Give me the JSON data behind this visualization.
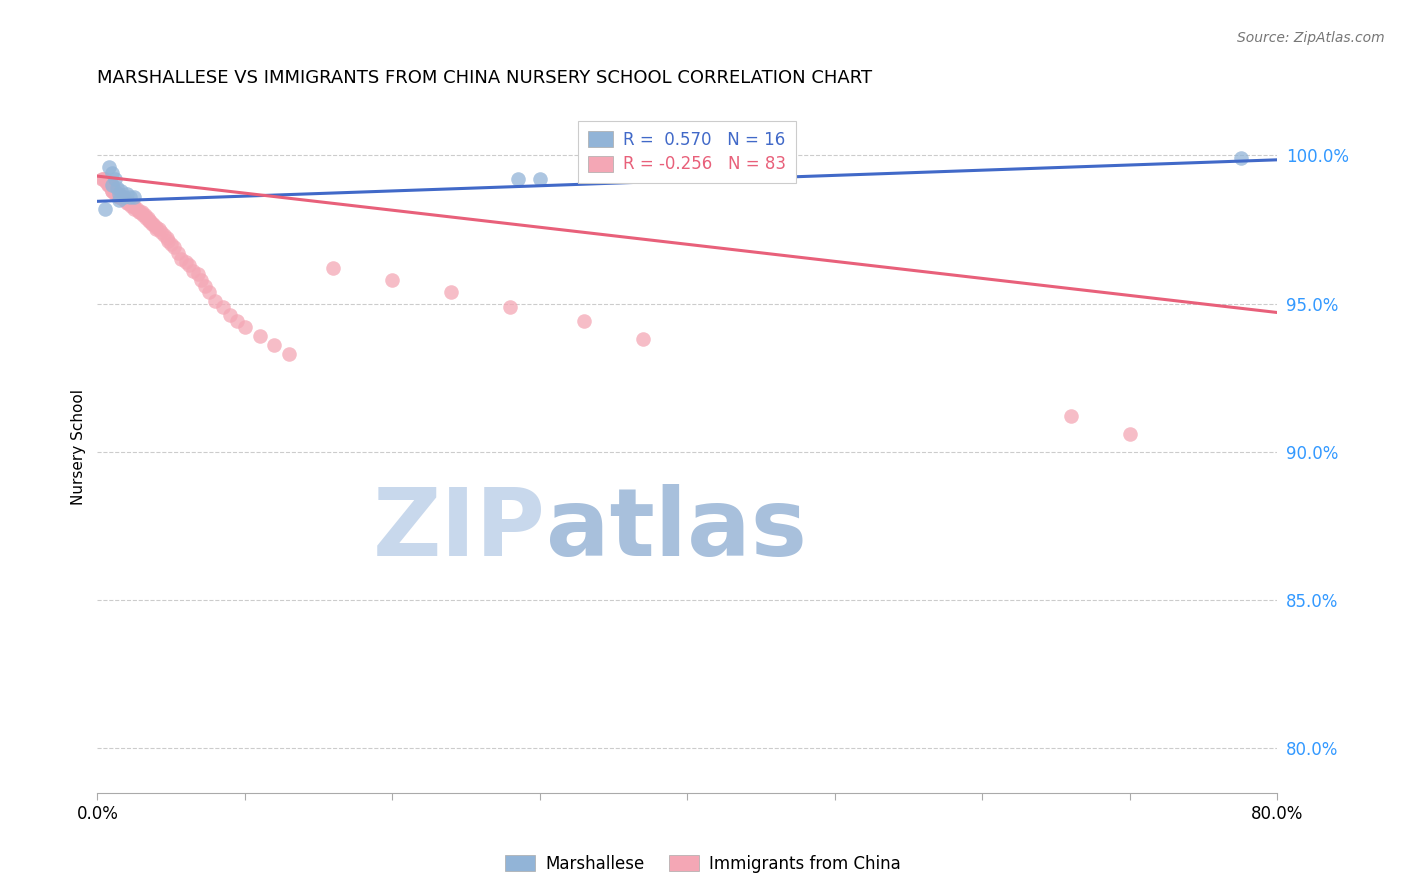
{
  "title": "MARSHALLESE VS IMMIGRANTS FROM CHINA NURSERY SCHOOL CORRELATION CHART",
  "source": "Source: ZipAtlas.com",
  "ylabel": "Nursery School",
  "ytick_labels": [
    "100.0%",
    "95.0%",
    "90.0%",
    "85.0%",
    "80.0%"
  ],
  "ytick_values": [
    1.0,
    0.95,
    0.9,
    0.85,
    0.8
  ],
  "xlim": [
    0.0,
    0.8
  ],
  "ylim": [
    0.785,
    1.018
  ],
  "legend_blue_r": "0.570",
  "legend_blue_n": "16",
  "legend_pink_r": "-0.256",
  "legend_pink_n": "83",
  "blue_color": "#92B4D7",
  "pink_color": "#F4A7B5",
  "blue_line_color": "#4169C8",
  "pink_line_color": "#E8607A",
  "grid_color": "#CCCCCC",
  "watermark_zip_color": "#C5D5E8",
  "watermark_atlas_color": "#A8C4E0",
  "blue_trendline_x": [
    0.0,
    0.8
  ],
  "blue_trendline_y": [
    0.9845,
    0.9985
  ],
  "pink_trendline_x": [
    0.0,
    0.8
  ],
  "pink_trendline_y": [
    0.993,
    0.947
  ],
  "blue_points_x": [
    0.005,
    0.008,
    0.01,
    0.01,
    0.012,
    0.013,
    0.015,
    0.015,
    0.016,
    0.018,
    0.02,
    0.022,
    0.025,
    0.285,
    0.3,
    0.775
  ],
  "blue_points_y": [
    0.982,
    0.996,
    0.994,
    0.99,
    0.992,
    0.989,
    0.987,
    0.985,
    0.988,
    0.986,
    0.987,
    0.986,
    0.986,
    0.992,
    0.992,
    0.999
  ],
  "pink_points_x": [
    0.003,
    0.004,
    0.005,
    0.006,
    0.007,
    0.007,
    0.008,
    0.008,
    0.009,
    0.009,
    0.01,
    0.01,
    0.01,
    0.011,
    0.011,
    0.012,
    0.012,
    0.013,
    0.013,
    0.014,
    0.014,
    0.015,
    0.015,
    0.016,
    0.016,
    0.017,
    0.018,
    0.018,
    0.019,
    0.02,
    0.02,
    0.021,
    0.022,
    0.023,
    0.024,
    0.025,
    0.025,
    0.027,
    0.028,
    0.029,
    0.03,
    0.031,
    0.032,
    0.033,
    0.034,
    0.035,
    0.036,
    0.037,
    0.038,
    0.04,
    0.04,
    0.042,
    0.043,
    0.045,
    0.047,
    0.048,
    0.05,
    0.052,
    0.055,
    0.057,
    0.06,
    0.062,
    0.065,
    0.068,
    0.07,
    0.073,
    0.076,
    0.08,
    0.085,
    0.09,
    0.095,
    0.1,
    0.11,
    0.12,
    0.13,
    0.16,
    0.2,
    0.24,
    0.28,
    0.33,
    0.37,
    0.66,
    0.7
  ],
  "pink_points_y": [
    0.992,
    0.992,
    0.992,
    0.991,
    0.991,
    0.99,
    0.99,
    0.99,
    0.99,
    0.99,
    0.99,
    0.988,
    0.988,
    0.988,
    0.988,
    0.988,
    0.987,
    0.987,
    0.987,
    0.987,
    0.987,
    0.986,
    0.986,
    0.986,
    0.986,
    0.986,
    0.986,
    0.985,
    0.985,
    0.985,
    0.984,
    0.984,
    0.984,
    0.983,
    0.983,
    0.983,
    0.982,
    0.982,
    0.981,
    0.981,
    0.981,
    0.98,
    0.98,
    0.979,
    0.979,
    0.978,
    0.978,
    0.977,
    0.977,
    0.976,
    0.975,
    0.975,
    0.974,
    0.973,
    0.972,
    0.971,
    0.97,
    0.969,
    0.967,
    0.965,
    0.964,
    0.963,
    0.961,
    0.96,
    0.958,
    0.956,
    0.954,
    0.951,
    0.949,
    0.946,
    0.944,
    0.942,
    0.939,
    0.936,
    0.933,
    0.962,
    0.958,
    0.954,
    0.949,
    0.944,
    0.938,
    0.912,
    0.906
  ]
}
